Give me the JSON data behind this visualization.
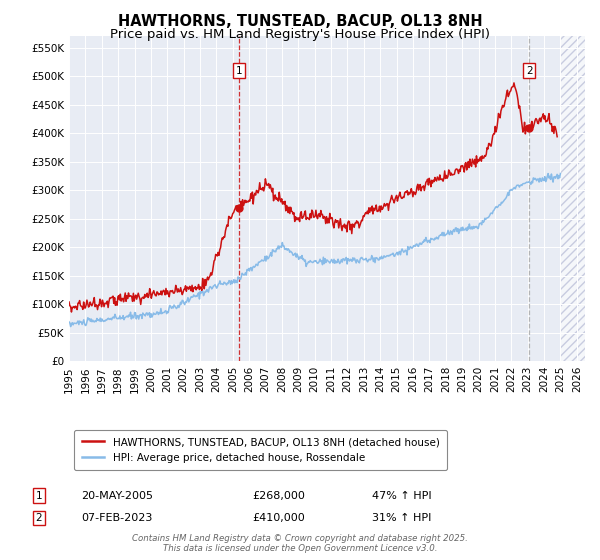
{
  "title": "HAWTHORNS, TUNSTEAD, BACUP, OL13 8NH",
  "subtitle": "Price paid vs. HM Land Registry's House Price Index (HPI)",
  "ylim": [
    0,
    570000
  ],
  "yticks": [
    0,
    50000,
    100000,
    150000,
    200000,
    250000,
    300000,
    350000,
    400000,
    450000,
    500000,
    550000
  ],
  "xlim_start": 1995.0,
  "xlim_end": 2026.5,
  "plot_bg": "#e8ecf4",
  "hatch_color": "#c8cce0",
  "hatch_start": 2025.0,
  "marker1_x": 2005.38,
  "marker1_y": 268000,
  "marker1_label": "1",
  "marker2_x": 2023.09,
  "marker2_y": 410000,
  "marker2_label": "2",
  "red_line_color": "#cc1111",
  "blue_line_color": "#88bbe8",
  "dashed1_color": "#cc1111",
  "dashed2_color": "#aaaaaa",
  "legend_red_label": "HAWTHORNS, TUNSTEAD, BACUP, OL13 8NH (detached house)",
  "legend_blue_label": "HPI: Average price, detached house, Rossendale",
  "annotation1_date": "20-MAY-2005",
  "annotation1_price": "£268,000",
  "annotation1_hpi": "47% ↑ HPI",
  "annotation2_date": "07-FEB-2023",
  "annotation2_price": "£410,000",
  "annotation2_hpi": "31% ↑ HPI",
  "footer": "Contains HM Land Registry data © Crown copyright and database right 2025.\nThis data is licensed under the Open Government Licence v3.0.",
  "title_fontsize": 10.5,
  "subtitle_fontsize": 9.5
}
